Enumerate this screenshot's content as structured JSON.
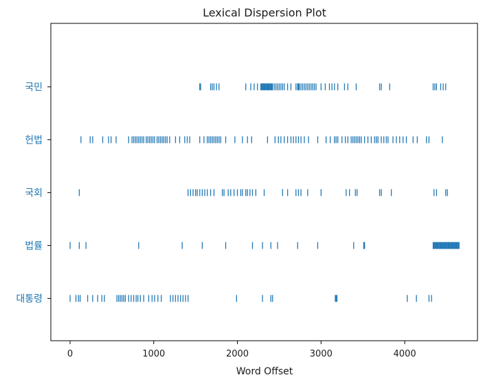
{
  "chart_data": {
    "type": "scatter",
    "title": "Lexical Dispersion Plot",
    "xlabel": "Word Offset",
    "ylabel": "",
    "xlim": [
      -230,
      4870
    ],
    "ylim": [
      -0.8,
      5.2
    ],
    "xticks": [
      0,
      1000,
      2000,
      3000,
      4000
    ],
    "xtick_labels": [
      "0",
      "1000",
      "2000",
      "3000",
      "4000"
    ],
    "grid": false,
    "marker_color": "#1f77b4",
    "label_color": "#1f77b4",
    "categories": [
      "대통령",
      "법률",
      "국회",
      "헌법",
      "국민"
    ],
    "series": [
      {
        "name": "국민",
        "level": 4,
        "x": [
          1550,
          1560,
          1680,
          1700,
          1720,
          1750,
          1780,
          2100,
          2160,
          2200,
          2240,
          2280,
          2290,
          2300,
          2310,
          2320,
          2330,
          2340,
          2350,
          2360,
          2370,
          2380,
          2390,
          2400,
          2410,
          2420,
          2440,
          2460,
          2480,
          2500,
          2520,
          2540,
          2560,
          2600,
          2640,
          2700,
          2720,
          2730,
          2740,
          2760,
          2780,
          2800,
          2820,
          2840,
          2860,
          2880,
          2900,
          2920,
          2940,
          3000,
          3050,
          3100,
          3130,
          3160,
          3200,
          3280,
          3320,
          3420,
          3700,
          3720,
          3820,
          4340,
          4360,
          4380,
          4430,
          4460,
          4490
        ]
      },
      {
        "name": "헌법",
        "level": 3,
        "x": [
          130,
          240,
          270,
          390,
          460,
          490,
          550,
          700,
          740,
          760,
          780,
          800,
          820,
          840,
          860,
          880,
          910,
          930,
          950,
          970,
          990,
          1010,
          1040,
          1060,
          1080,
          1100,
          1120,
          1140,
          1160,
          1190,
          1260,
          1310,
          1370,
          1400,
          1430,
          1550,
          1600,
          1640,
          1660,
          1680,
          1700,
          1720,
          1740,
          1760,
          1780,
          1800,
          1860,
          1970,
          2060,
          2120,
          2170,
          2360,
          2450,
          2490,
          2520,
          2560,
          2600,
          2640,
          2670,
          2700,
          2730,
          2760,
          2800,
          2850,
          2960,
          3060,
          3110,
          3160,
          3180,
          3200,
          3250,
          3290,
          3320,
          3360,
          3380,
          3400,
          3420,
          3440,
          3460,
          3480,
          3520,
          3560,
          3600,
          3640,
          3660,
          3680,
          3720,
          3750,
          3780,
          3800,
          3860,
          3900,
          3940,
          3980,
          4020,
          4100,
          4150,
          4260,
          4290,
          4450
        ]
      },
      {
        "name": "국회",
        "level": 2,
        "x": [
          110,
          1410,
          1440,
          1470,
          1500,
          1520,
          1550,
          1580,
          1610,
          1640,
          1680,
          1720,
          1820,
          1840,
          1890,
          1920,
          1960,
          2000,
          2040,
          2060,
          2100,
          2120,
          2150,
          2180,
          2220,
          2320,
          2540,
          2600,
          2700,
          2730,
          2760,
          2840,
          3000,
          3300,
          3340,
          3410,
          3430,
          3700,
          3720,
          3840,
          4350,
          4380,
          4490,
          4510
        ]
      },
      {
        "name": "법률",
        "level": 1,
        "x": [
          0,
          110,
          190,
          820,
          1340,
          1580,
          1860,
          2180,
          2300,
          2400,
          2480,
          2720,
          2960,
          3390,
          3510,
          3520,
          4340,
          4350,
          4360,
          4370,
          4380,
          4390,
          4400,
          4410,
          4420,
          4430,
          4440,
          4450,
          4460,
          4470,
          4480,
          4490,
          4500,
          4510,
          4520,
          4530,
          4540,
          4550,
          4560,
          4570,
          4580,
          4590,
          4600,
          4610,
          4620,
          4630,
          4640,
          4650
        ]
      },
      {
        "name": "대통령",
        "level": 0,
        "x": [
          0,
          70,
          100,
          120,
          210,
          270,
          330,
          380,
          410,
          560,
          580,
          600,
          620,
          640,
          660,
          700,
          730,
          760,
          790,
          810,
          840,
          880,
          940,
          980,
          1010,
          1050,
          1090,
          1200,
          1230,
          1260,
          1290,
          1320,
          1350,
          1380,
          1410,
          1990,
          2300,
          2400,
          2420,
          3170,
          3180,
          3190,
          4030,
          4140,
          4290,
          4320
        ]
      }
    ]
  }
}
